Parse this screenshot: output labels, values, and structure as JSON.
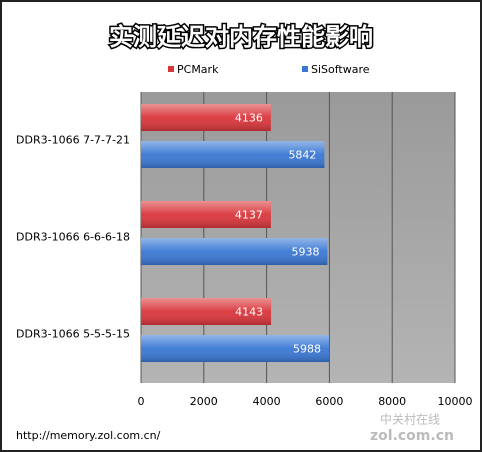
{
  "chart_data": {
    "type": "bar",
    "orientation": "horizontal",
    "title": "实测延迟对内存性能影响",
    "categories": [
      "DDR3-1066 7-7-7-21",
      "DDR3-1066 6-6-6-18",
      "DDR3-1066 5-5-5-15"
    ],
    "series": [
      {
        "name": "PCMark",
        "color": "#d9363b",
        "values": [
          4136,
          4137,
          4143
        ]
      },
      {
        "name": "SiSoftware",
        "color": "#3a78d4",
        "values": [
          5842,
          5938,
          5988
        ]
      }
    ],
    "xlim": [
      0,
      10000
    ],
    "xticks": [
      0,
      2000,
      4000,
      6000,
      8000,
      10000
    ],
    "grid": true,
    "legend": "top",
    "footer": "http://memory.zol.com.cn/",
    "watermark": [
      "中关村在线",
      "zol.com.cn"
    ]
  }
}
